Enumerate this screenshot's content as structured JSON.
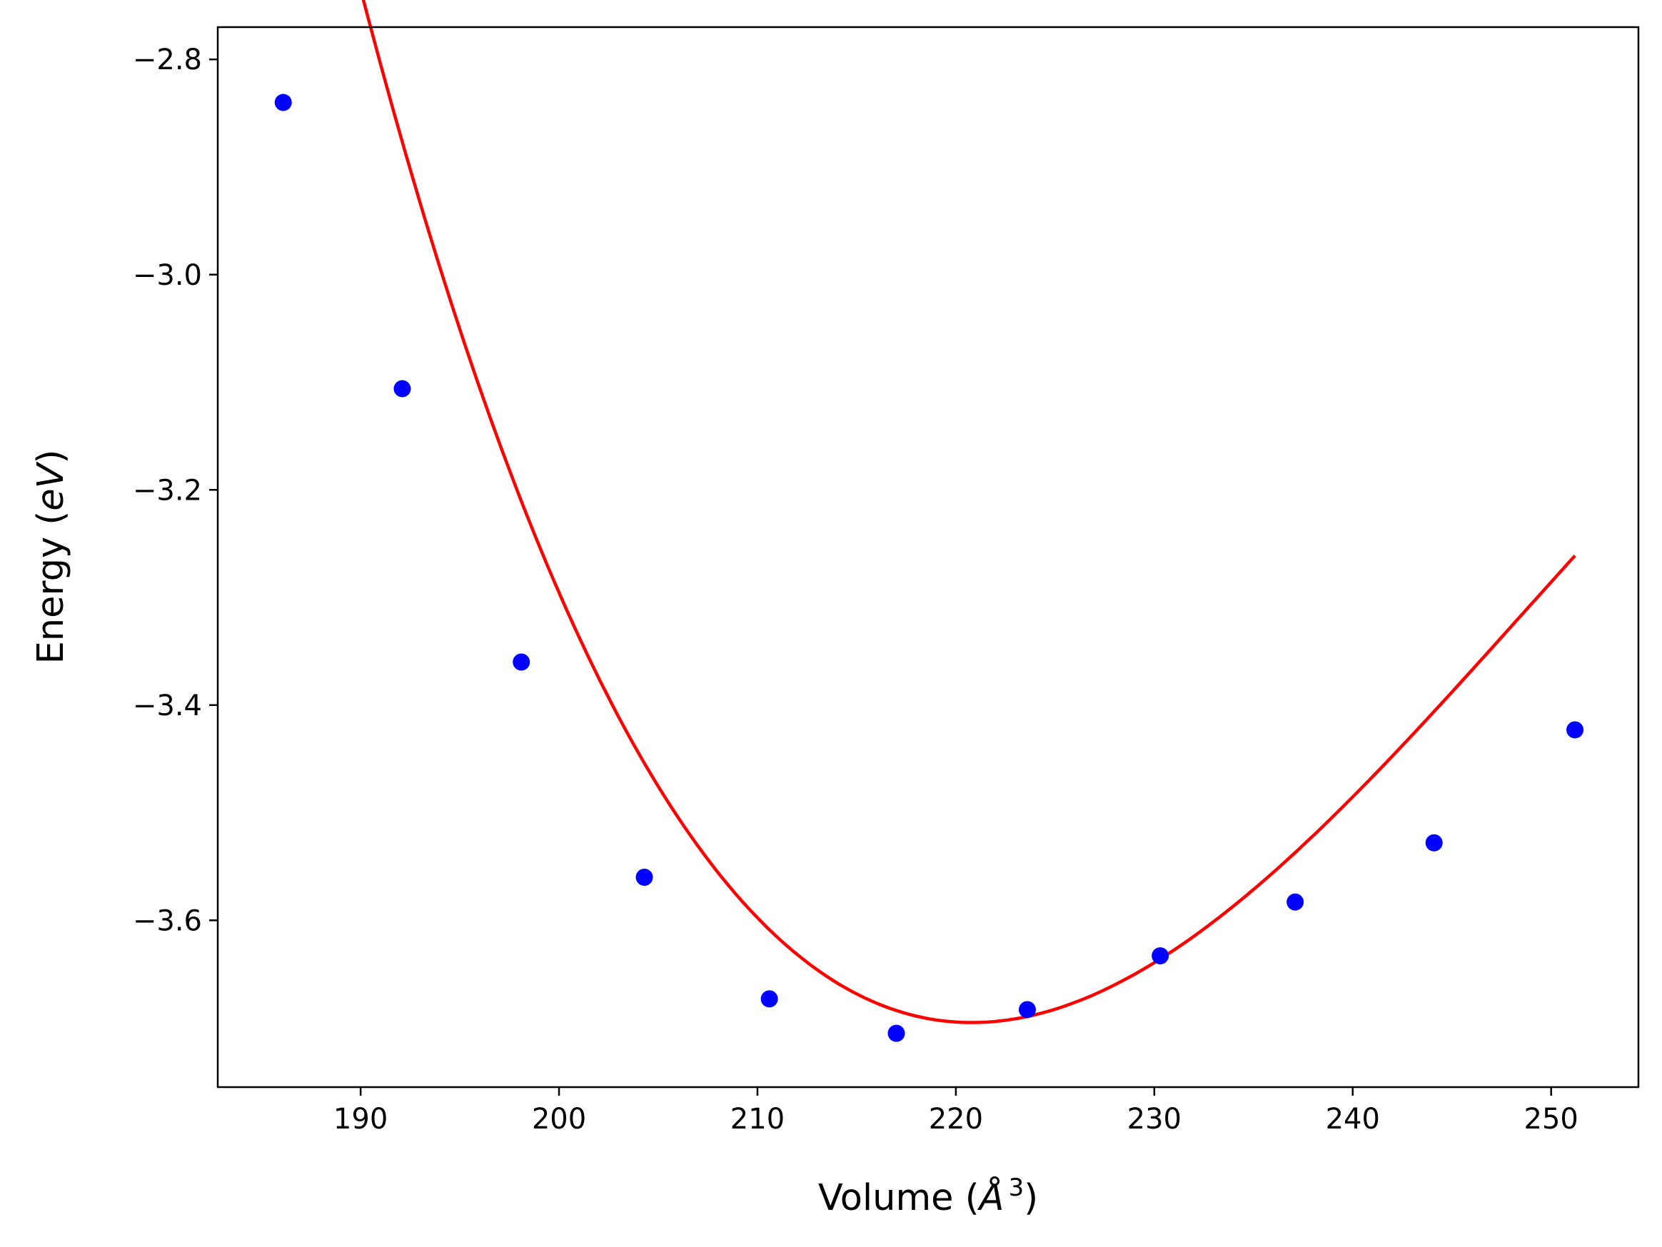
{
  "chart_data": {
    "type": "scatter",
    "xlabel": "Volume (Å³)",
    "xlabel_parts": {
      "prefix": "Volume (",
      "symbol": "Å",
      "superscript": "3",
      "suffix": ")"
    },
    "ylabel": "Energy (eV)",
    "ylabel_parts": {
      "prefix": "Energy (",
      "italic": "eV",
      "suffix": ")"
    },
    "xlim": [
      182.8,
      254.4
    ],
    "ylim": [
      -3.755,
      -2.77
    ],
    "x_ticks": [
      190,
      200,
      210,
      220,
      230,
      240,
      250
    ],
    "y_ticks": [
      -2.8,
      -3.0,
      -3.2,
      -3.4,
      -3.6
    ],
    "x_tick_labels": [
      "190",
      "200",
      "210",
      "220",
      "230",
      "240",
      "250"
    ],
    "y_tick_labels": [
      "−2.8",
      "−3.0",
      "−3.2",
      "−3.4",
      "−3.6"
    ],
    "grid": false,
    "series": [
      {
        "type": "scatter",
        "color": "#0000ff",
        "x": [
          186.1,
          192.1,
          198.1,
          204.3,
          210.6,
          217.0,
          223.6,
          230.3,
          237.1,
          244.1,
          251.2
        ],
        "y": [
          -2.84,
          -3.106,
          -3.36,
          -3.56,
          -3.673,
          -3.705,
          -3.683,
          -3.633,
          -3.583,
          -3.528,
          -3.423
        ]
      },
      {
        "type": "line",
        "color": "#ff0000",
        "fit": {
          "model": "quadratic",
          "x_range": [
            186.1,
            251.2
          ],
          "x_min": 220.8,
          "y_min": -3.695,
          "curvature": 0.000739
        }
      }
    ]
  }
}
